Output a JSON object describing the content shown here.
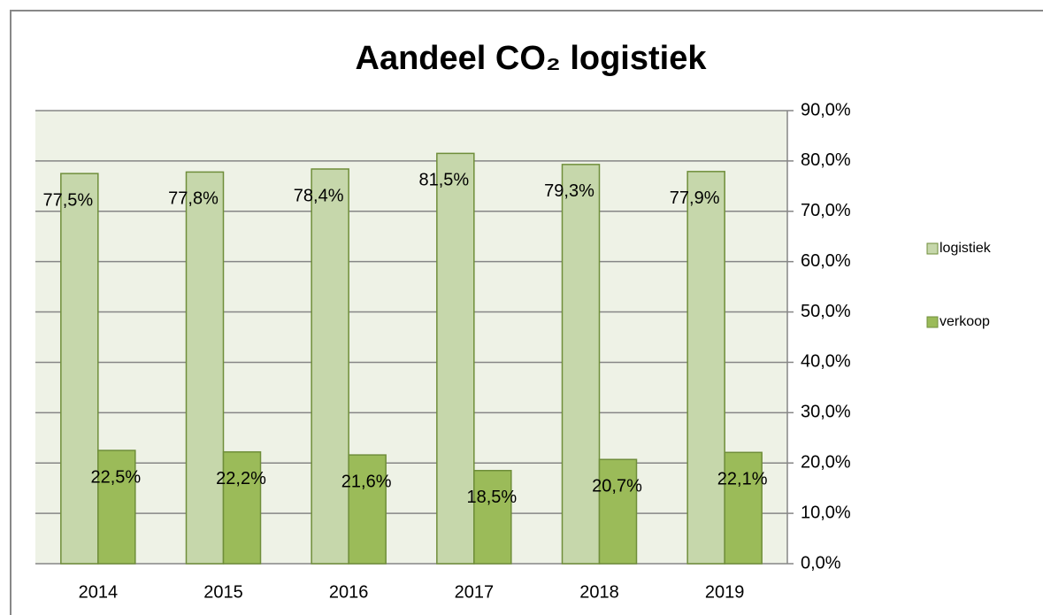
{
  "chart_data": {
    "type": "bar",
    "title": "Aandeel CO₂ logistiek",
    "categories": [
      "2014",
      "2015",
      "2016",
      "2017",
      "2018",
      "2019"
    ],
    "series": [
      {
        "name": "logistiek",
        "color": "#c6d7ab",
        "values": [
          77.5,
          77.8,
          78.4,
          81.5,
          79.3,
          77.9
        ],
        "value_labels": [
          "77,5%",
          "77,8%",
          "78,4%",
          "81,5%",
          "79,3%",
          "77,9%"
        ]
      },
      {
        "name": "verkoop",
        "color": "#9bbb59",
        "values": [
          22.5,
          22.2,
          21.6,
          18.5,
          20.7,
          22.1
        ],
        "value_labels": [
          "22,5%",
          "22,2%",
          "21,6%",
          "18,5%",
          "20,7%",
          "22,1%"
        ]
      }
    ],
    "ylim": [
      0,
      90
    ],
    "yticks": [
      {
        "value": 0,
        "label": "0,0%"
      },
      {
        "value": 10,
        "label": "10,0%"
      },
      {
        "value": 20,
        "label": "20,0%"
      },
      {
        "value": 30,
        "label": "30,0%"
      },
      {
        "value": 40,
        "label": "40,0%"
      },
      {
        "value": 50,
        "label": "50,0%"
      },
      {
        "value": 60,
        "label": "60,0%"
      },
      {
        "value": 70,
        "label": "70,0%"
      },
      {
        "value": 80,
        "label": "80,0%"
      },
      {
        "value": 90,
        "label": "90,0%"
      }
    ],
    "grid": true,
    "legend": "right"
  }
}
